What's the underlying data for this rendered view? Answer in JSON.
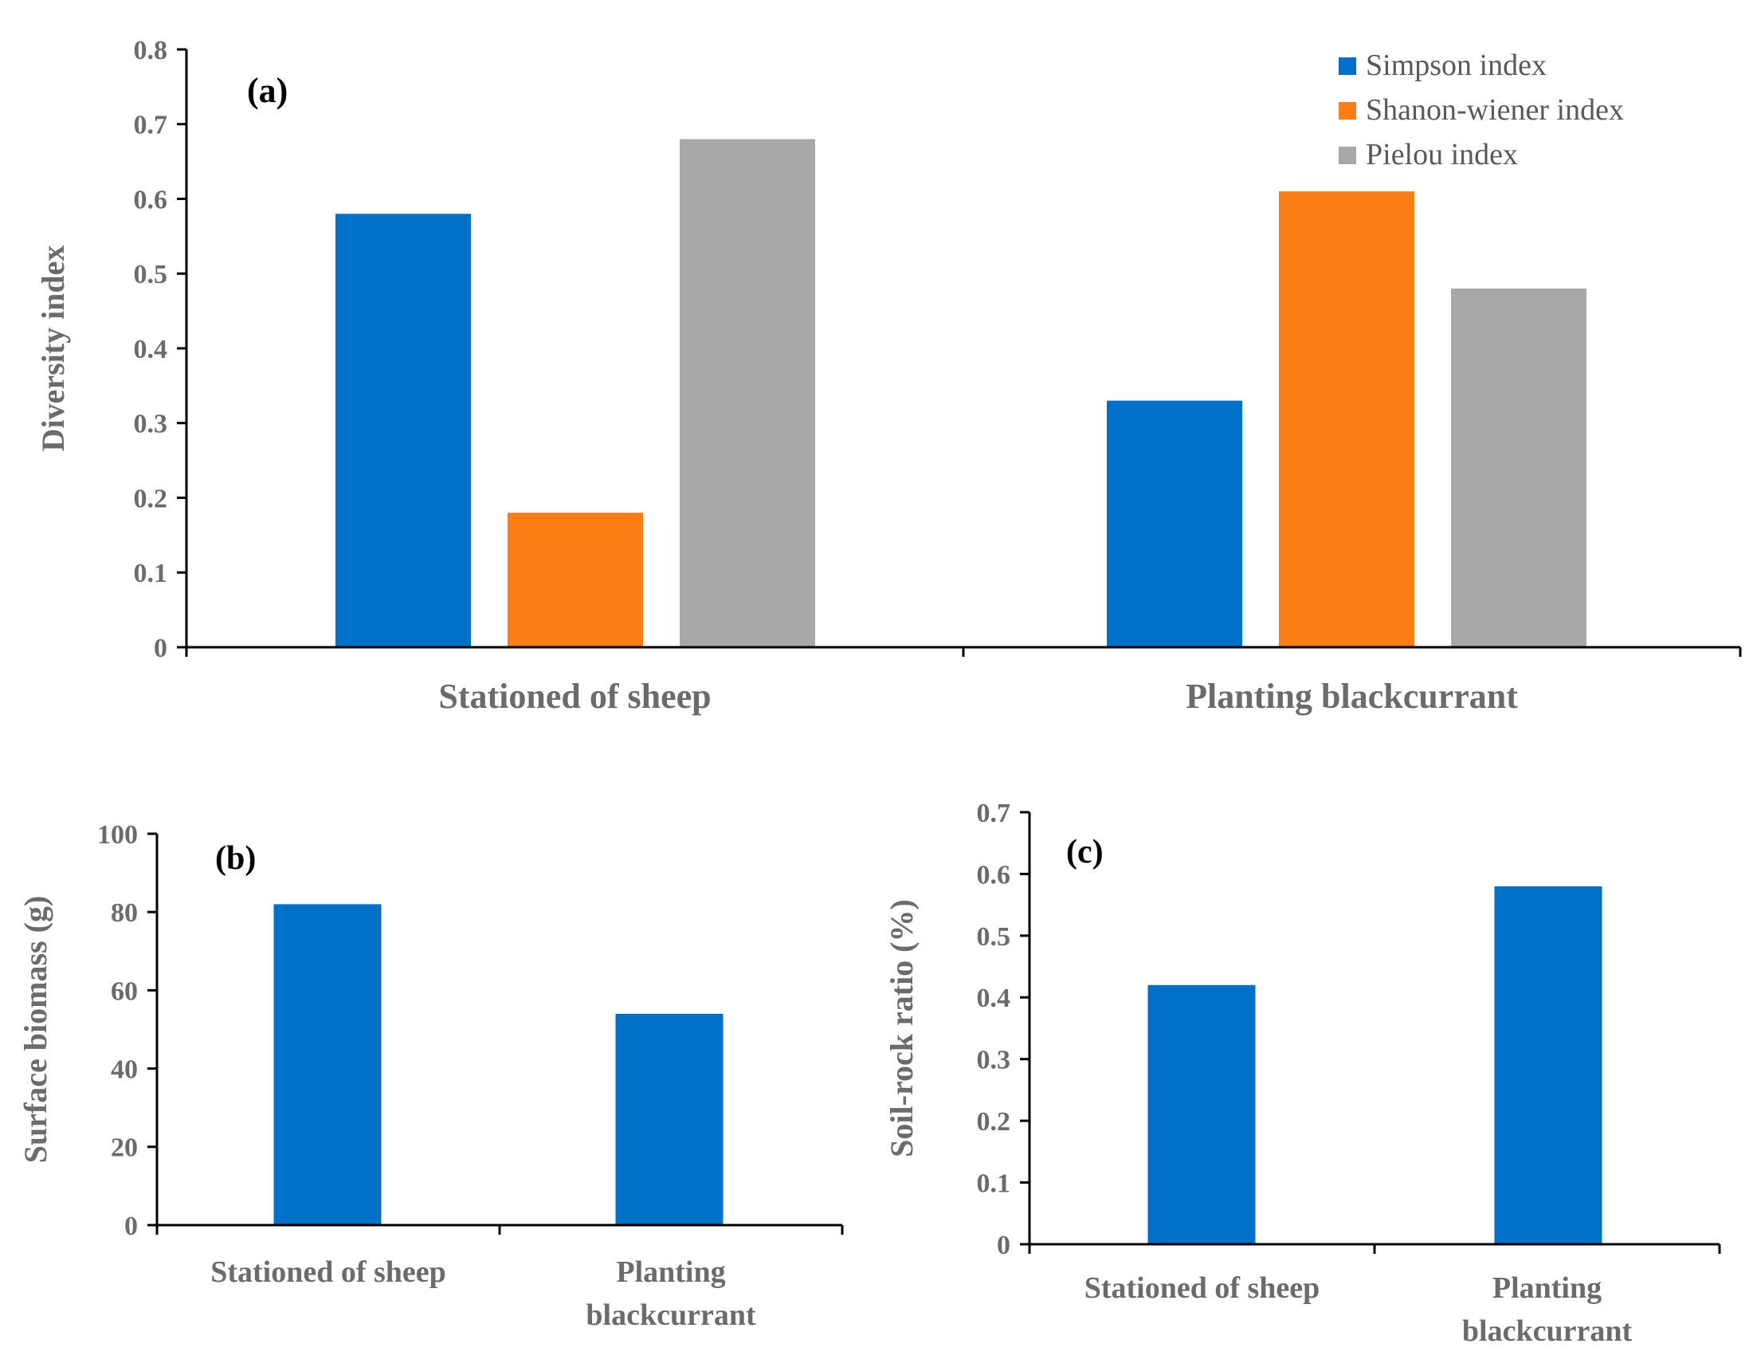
{
  "chart_data": [
    {
      "id": "a",
      "type": "bar",
      "panel_label": "(a)",
      "ylabel": "Diversity index",
      "xlabel": "",
      "ylim": [
        0,
        0.8
      ],
      "yticks": [
        "0",
        "0.1",
        "0.2",
        "0.3",
        "0.4",
        "0.5",
        "0.6",
        "0.7",
        "0.8"
      ],
      "categories": [
        [
          "Stationed of sheep"
        ],
        [
          "Planting blackcurrant"
        ]
      ],
      "series": [
        {
          "name": "Simpson index",
          "color": "#0070c9",
          "values": [
            0.58,
            0.33
          ]
        },
        {
          "name": "Shanon-wiener index",
          "color": "#fb7d15",
          "values": [
            0.18,
            0.61
          ]
        },
        {
          "name": "Pielou index",
          "color": "#a8a8a8",
          "values": [
            0.68,
            0.48
          ]
        }
      ],
      "legend": "top-right"
    },
    {
      "id": "b",
      "type": "bar",
      "panel_label": "(b)",
      "ylabel": "Surface biomass (g)",
      "xlabel": "",
      "ylim": [
        0,
        100
      ],
      "yticks": [
        "0",
        "20",
        "40",
        "60",
        "80",
        "100"
      ],
      "categories": [
        [
          "Stationed of sheep"
        ],
        [
          "Planting",
          "blackcurrant"
        ]
      ],
      "series": [
        {
          "name": "Surface biomass",
          "color": "#0070c9",
          "values": [
            82,
            54
          ]
        }
      ]
    },
    {
      "id": "c",
      "type": "bar",
      "panel_label": "(c)",
      "ylabel": "Soil-rock ratio (%)",
      "xlabel": "",
      "ylim": [
        0,
        0.7
      ],
      "yticks": [
        "0",
        "0.1",
        "0.2",
        "0.3",
        "0.4",
        "0.5",
        "0.6",
        "0.7"
      ],
      "categories": [
        [
          "Stationed of sheep"
        ],
        [
          "Planting",
          "blackcurrant"
        ]
      ],
      "series": [
        {
          "name": "Soil-rock ratio",
          "color": "#0070c9",
          "values": [
            0.42,
            0.58
          ]
        }
      ]
    }
  ]
}
